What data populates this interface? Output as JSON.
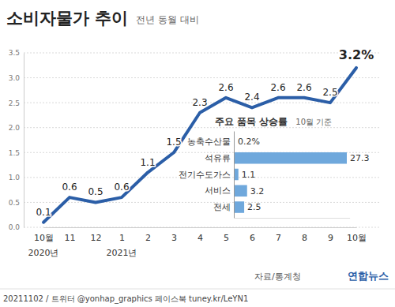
{
  "chart_data": [
    {
      "type": "line",
      "title": "소비자물가 추이",
      "subtitle": "전년 동월 대비",
      "categories": [
        "10월",
        "11",
        "12",
        "1",
        "2",
        "3",
        "4",
        "5",
        "6",
        "7",
        "8",
        "9",
        "10월"
      ],
      "values": [
        0.1,
        0.6,
        0.5,
        0.6,
        1.1,
        1.5,
        2.3,
        2.6,
        2.4,
        2.6,
        2.6,
        2.5,
        3.2
      ],
      "value_labels": [
        "0.1",
        "0.6",
        "0.5",
        "0.6",
        "1.1",
        "1.5",
        "2.3",
        "2.6",
        "2.4",
        "2.6",
        "2.6",
        "2.5",
        "3.2%"
      ],
      "data_labels": true,
      "color": "#2b5ea7",
      "ylim": [
        0,
        3.5
      ],
      "yticks": [
        {
          "value": 0,
          "label": "0.0"
        },
        0.5,
        {
          "value": 1,
          "label": "1.0"
        },
        1.5,
        {
          "value": 2,
          "label": "2.0"
        },
        2.5,
        {
          "value": 3,
          "label": "3.0"
        },
        3.5
      ],
      "grid": true,
      "annotations": [
        {
          "text": "2020년",
          "x": 0
        },
        {
          "text": "2021년",
          "x": 3
        }
      ]
    },
    {
      "type": "bar",
      "orientation": "horizontal",
      "title": "주요 품목 상승률",
      "subtitle": "10월 기준",
      "categories": [
        "농축수산물",
        "석유류",
        "전기수도가스",
        "서비스",
        "전세"
      ],
      "values": [
        0.2,
        27.3,
        1.1,
        3.2,
        2.5
      ],
      "value_labels": [
        "0.2%",
        "27.3",
        "1.1",
        "3.2",
        "2.5"
      ],
      "data_labels": true,
      "tick_labels": "y",
      "color": "#6fa8dc",
      "xlim": [
        0,
        28
      ]
    }
  ],
  "source": "자료/통계청",
  "footer": "20211102 / 트위터 @yonhap_graphics 페이스북 tuney.kr/LeYN1",
  "credit": "연합뉴스"
}
